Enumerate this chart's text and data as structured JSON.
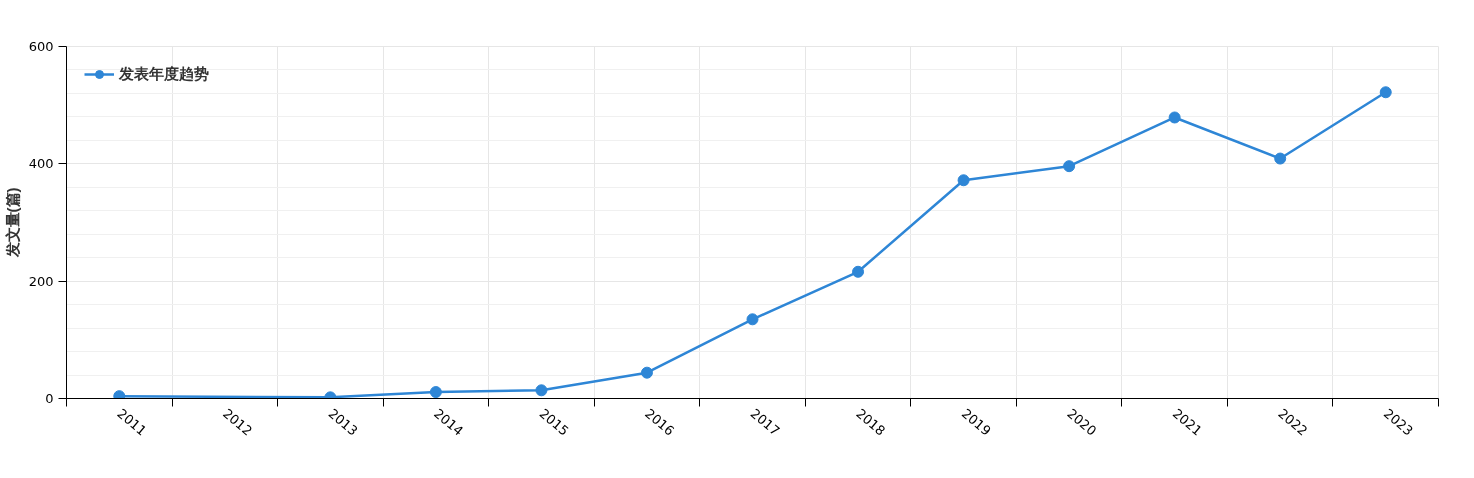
{
  "chart_data": {
    "type": "line",
    "ylabel": "发文量(篇)",
    "categories": [
      "2011",
      "2012",
      "2013",
      "2014",
      "2015",
      "2016",
      "2017",
      "2018",
      "2019",
      "2020",
      "2021",
      "2022",
      "2023"
    ],
    "series": [
      {
        "name": "发表年度趋势",
        "color": "#2e86d6",
        "values": [
          4,
          null,
          2,
          11,
          14,
          44,
          135,
          216,
          372,
          396,
          479,
          409,
          522
        ]
      }
    ],
    "ylim": [
      0,
      600
    ],
    "yticks": [
      0,
      200,
      400,
      600
    ],
    "grid": true,
    "legend": "top left",
    "marker": "circle",
    "line_style": "solid"
  }
}
